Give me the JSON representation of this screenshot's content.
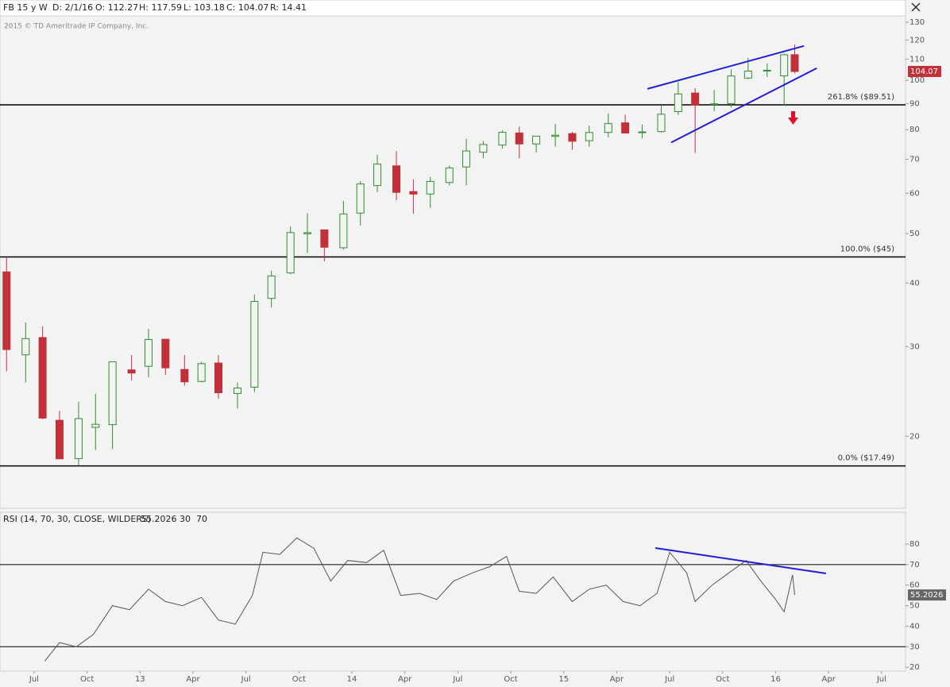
{
  "chart_data": [
    {
      "type": "candlestick",
      "header": [
        "FB 15 y W",
        "D: 2/1/16",
        "O: 112.27",
        "H: 117.59",
        "L: 103.18",
        "C: 104.07",
        "R: 14.41"
      ],
      "copyright": "2015 © TD Ameritrade IP Company, Inc.",
      "log_scale": true,
      "up_color": "#2f8f2f",
      "down_color": "#c0313a",
      "x": [
        2012.37,
        2012.46,
        2012.54,
        2012.62,
        2012.71,
        2012.79,
        2012.87,
        2012.96,
        2013.04,
        2013.12,
        2013.21,
        2013.29,
        2013.37,
        2013.46,
        2013.54,
        2013.62,
        2013.71,
        2013.79,
        2013.87,
        2013.96,
        2014.04,
        2014.12,
        2014.21,
        2014.29,
        2014.37,
        2014.46,
        2014.54,
        2014.62,
        2014.71,
        2014.79,
        2014.87,
        2014.96,
        2015.04,
        2015.12,
        2015.21,
        2015.29,
        2015.37,
        2015.46,
        2015.54,
        2015.62,
        2015.71,
        2015.79,
        2015.87,
        2015.96,
        2016.04,
        2016.09
      ],
      "open": [
        42.05,
        28.9,
        31.25,
        21.5,
        18.08,
        20.82,
        21.08,
        27.0,
        27.44,
        31.01,
        27.05,
        25.63,
        27.85,
        24.27,
        24.97,
        37.3,
        41.85,
        49.97,
        50.85,
        46.9,
        54.86,
        62.12,
        67.92,
        60.46,
        59.8,
        63.0,
        67.58,
        72.22,
        74.6,
        78.8,
        75.0,
        77.6,
        78.6,
        76.1,
        79.0,
        82.5,
        79.0,
        79.3,
        86.8,
        94.4,
        89.6,
        90.0,
        101.0,
        104.5,
        102.0,
        112.27
      ],
      "high": [
        45,
        33.45,
        32.88,
        22.45,
        23.37,
        24.25,
        28.0,
        28.88,
        32.51,
        31.02,
        28.88,
        28.0,
        28.87,
        25.5,
        37.96,
        42.26,
        51.6,
        54.83,
        50.9,
        57.96,
        63.37,
        71.44,
        72.59,
        63.9,
        64.6,
        68.0,
        76.74,
        75.99,
        79.7,
        81.16,
        77.7,
        82.17,
        79.2,
        81.37,
        86.07,
        85.59,
        81.9,
        89.4,
        99.24,
        96.5,
        95.7,
        105.1,
        110.65,
        107.9,
        112.8,
        117.59
      ],
      "low": [
        26.83,
        25.52,
        21.61,
        18.03,
        17.55,
        18.8,
        18.87,
        25.75,
        26.11,
        26.38,
        25.15,
        25.52,
        23.7,
        22.67,
        24.42,
        35.8,
        41.64,
        45.8,
        44.1,
        46.5,
        51.85,
        60.3,
        58.1,
        54.66,
        56.2,
        62.2,
        62.21,
        70.32,
        73.4,
        70.32,
        72.2,
        74.1,
        73.0,
        74.05,
        77.26,
        78.9,
        76.9,
        78.9,
        85.5,
        72.0,
        86.9,
        88.4,
        100.5,
        101.5,
        89.37,
        103.18
      ],
      "close": [
        29.6,
        31.1,
        21.71,
        18.06,
        21.66,
        21.11,
        28.0,
        26.62,
        30.98,
        27.25,
        25.58,
        27.77,
        24.35,
        24.88,
        36.8,
        41.29,
        50.23,
        50.21,
        47.01,
        54.65,
        62.57,
        68.46,
        60.24,
        59.78,
        63.3,
        67.29,
        72.65,
        74.82,
        79.04,
        74.99,
        77.7,
        78.02,
        75.91,
        78.97,
        82.22,
        78.77,
        79.19,
        85.77,
        94.01,
        89.43,
        89.9,
        101.97,
        104.24,
        104.66,
        112.21,
        104.07
      ],
      "last_label": "104.07",
      "xlim": [
        2012.339,
        2016.613
      ],
      "ylim": [
        14.44,
        133.8
      ],
      "yticks": [
        20,
        30,
        40,
        50,
        60,
        70,
        80,
        90,
        100,
        110,
        120,
        130
      ],
      "levels": [
        {
          "value": 89.51,
          "label": "261.8%  ($89.51)"
        },
        {
          "value": 45,
          "label": "100.0%  ($45)"
        },
        {
          "value": 17.49,
          "label": "0.0%  ($17.49)"
        }
      ],
      "trendlines": [
        {
          "color": "#1f1fd6",
          "x": [
            2015.395,
            2016.134
          ],
          "y": [
            96.2,
            116.8
          ]
        },
        {
          "color": "#1f1fd6",
          "x": [
            2015.507,
            2016.194
          ],
          "y": [
            75.5,
            105.6
          ]
        }
      ]
    },
    {
      "type": "line",
      "title": "RSI (14, 70, 30, CLOSE, WILDERS)",
      "color": "#555555",
      "x": [
        2012.55,
        2012.62,
        2012.7,
        2012.78,
        2012.87,
        2012.95,
        2013.04,
        2013.12,
        2013.2,
        2013.29,
        2013.37,
        2013.45,
        2013.53,
        2013.58,
        2013.66,
        2013.74,
        2013.82,
        2013.9,
        2013.98,
        2014.07,
        2014.15,
        2014.23,
        2014.32,
        2014.4,
        2014.48,
        2014.57,
        2014.65,
        2014.73,
        2014.79,
        2014.87,
        2014.95,
        2015.04,
        2015.12,
        2015.2,
        2015.28,
        2015.36,
        2015.44,
        2015.5,
        2015.58,
        2015.62,
        2015.7,
        2015.78,
        2015.86,
        2015.93,
        2016.0,
        2016.04,
        2016.08,
        2016.09
      ],
      "values": [
        23,
        32,
        30,
        36,
        50,
        48,
        58,
        52,
        50,
        54,
        43,
        41,
        55,
        76,
        75,
        83,
        78,
        62,
        72,
        71,
        77,
        55,
        56,
        53,
        62,
        66,
        69,
        74,
        57,
        56,
        64,
        52,
        58,
        60,
        52,
        50,
        56,
        76,
        66,
        52,
        60,
        66,
        72,
        62,
        53,
        47,
        65,
        55.2026
      ],
      "levels": [
        30,
        70
      ],
      "xlim": [
        2012.339,
        2016.613
      ],
      "ylim": [
        18.1,
        95.5
      ],
      "yticks": [
        20,
        30,
        40,
        50,
        60,
        70,
        80
      ],
      "xticks": [
        {
          "value": 2012.5,
          "label": "Jul"
        },
        {
          "value": 2012.75,
          "label": "Oct"
        },
        {
          "value": 2013.0,
          "label": "13"
        },
        {
          "value": 2013.25,
          "label": "Apr"
        },
        {
          "value": 2013.5,
          "label": "Jul"
        },
        {
          "value": 2013.75,
          "label": "Oct"
        },
        {
          "value": 2014.0,
          "label": "14"
        },
        {
          "value": 2014.25,
          "label": "Apr"
        },
        {
          "value": 2014.5,
          "label": "Jul"
        },
        {
          "value": 2014.75,
          "label": "Oct"
        },
        {
          "value": 2015.0,
          "label": "15"
        },
        {
          "value": 2015.25,
          "label": "Apr"
        },
        {
          "value": 2015.5,
          "label": "Jul"
        },
        {
          "value": 2015.75,
          "label": "Oct"
        },
        {
          "value": 2016.0,
          "label": "16"
        },
        {
          "value": 2016.25,
          "label": "Apr"
        },
        {
          "value": 2016.5,
          "label": "Jul"
        }
      ],
      "trendlines": [
        {
          "color": "#1f1fd6",
          "x": [
            2015.432,
            2016.238
          ],
          "y": [
            78.1,
            65.7
          ]
        }
      ]
    }
  ]
}
